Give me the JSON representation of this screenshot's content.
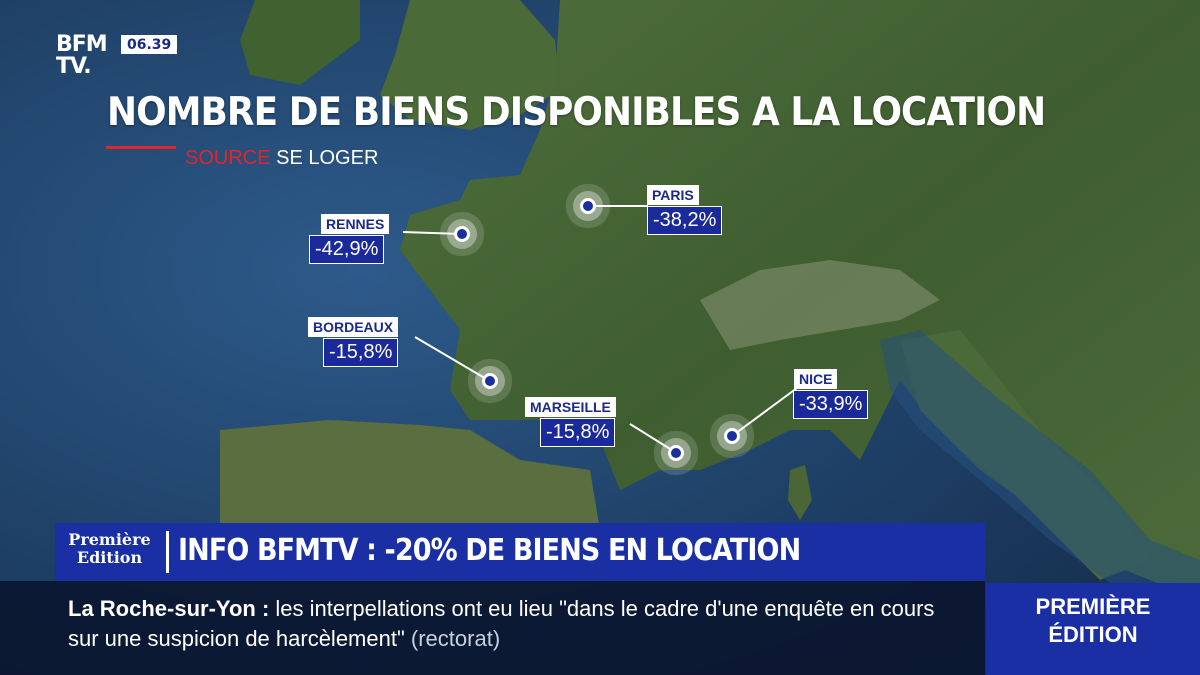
{
  "channel": {
    "logo_line1": "BFM",
    "logo_line2": "TV.",
    "clock": "06.39"
  },
  "title": "NOMBRE DE BIENS DISPONIBLES A LA LOCATION",
  "source": {
    "label": "SOURCE",
    "value": "SE LOGER"
  },
  "cities": [
    {
      "name": "RENNES",
      "value": "-42,9%"
    },
    {
      "name": "PARIS",
      "value": "-38,2%"
    },
    {
      "name": "BORDEAUX",
      "value": "-15,8%"
    },
    {
      "name": "MARSEILLE",
      "value": "-15,8%"
    },
    {
      "name": "NICE",
      "value": "-33,9%"
    }
  ],
  "banner": {
    "badge_line1": "Première",
    "badge_line2": "Edition",
    "headline": "INFO BFMTV : -20% DE BIENS EN LOCATION"
  },
  "ticker": {
    "place": "La Roche-sur-Yon :",
    "text": "les interpellations ont eu lieu \"dans le cadre d'une enquête en cours sur une suspicion de harcèlement\"",
    "source": "(rectorat)"
  },
  "side_badge": {
    "line1": "PREMIÈRE",
    "line2": "ÉDITION"
  },
  "colors": {
    "accent_blue": "#1b2fa5",
    "source_red": "#e3242b"
  }
}
